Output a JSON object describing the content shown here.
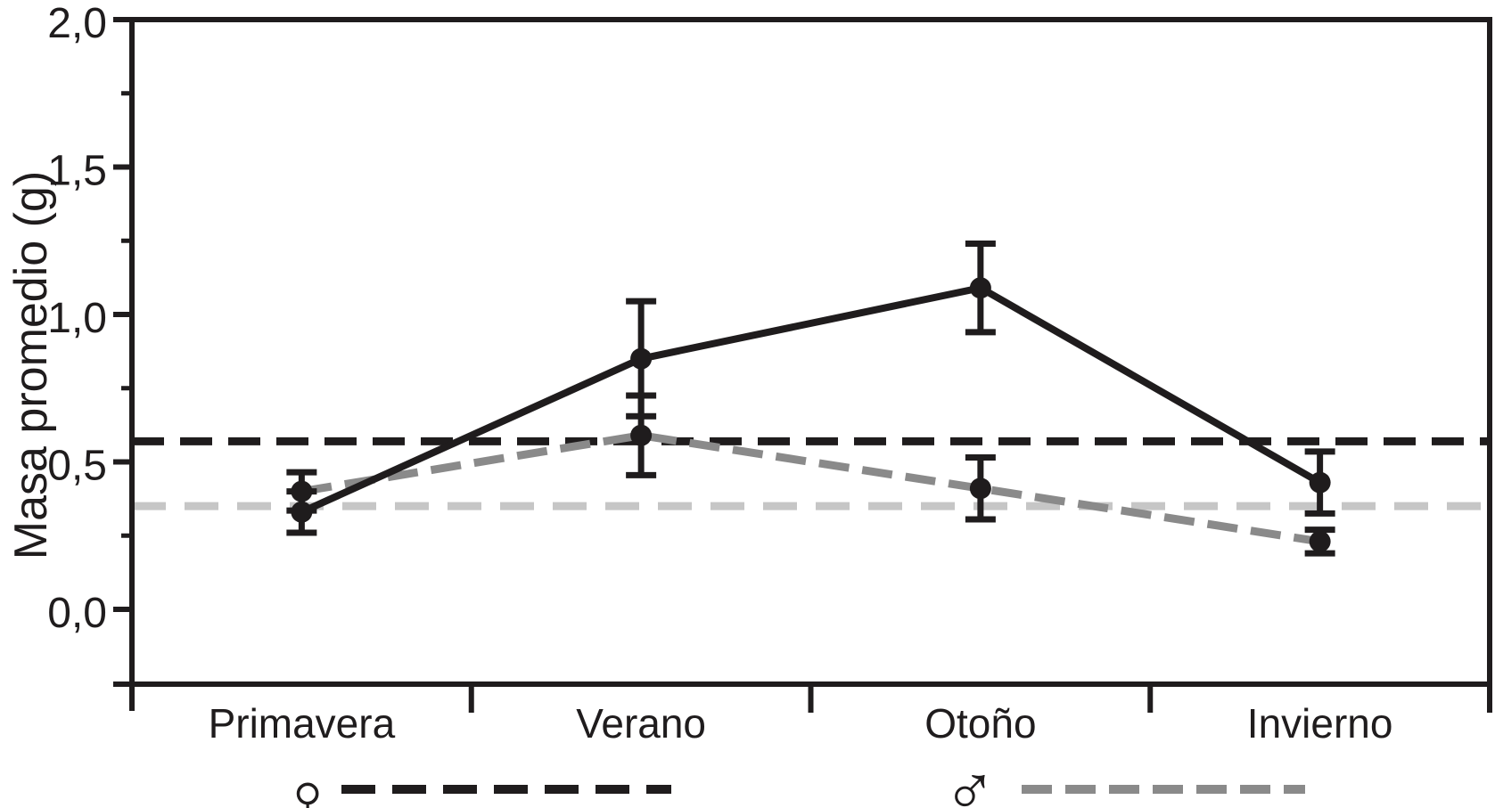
{
  "figure_title": "",
  "chart_data": {
    "type": "line",
    "title": "",
    "xlabel": "",
    "ylabel": "Masa promedio (g)",
    "categories": [
      "Primavera",
      "Verano",
      "Otoño",
      "Invierno"
    ],
    "ylim": [
      -0.26,
      2.0
    ],
    "yticks": [
      {
        "value": 0.0,
        "label": "0,0"
      },
      {
        "value": 0.5,
        "label": "0,5"
      },
      {
        "value": 1.0,
        "label": "1,0"
      },
      {
        "value": 1.5,
        "label": "1,5"
      },
      {
        "value": 2.0,
        "label": "2,0"
      }
    ],
    "minor_yticks": [
      0.25,
      0.75,
      1.25,
      1.75
    ],
    "grid": false,
    "legend_position": "bottom",
    "series": [
      {
        "name": "males-seasonal",
        "line_style": "dashed",
        "color": "#8a8a8a",
        "marker": "filled-circle",
        "marker_color": "#1f1c1d",
        "values": [
          0.4,
          0.59,
          0.41,
          0.23
        ],
        "errors": [
          0.065,
          0.135,
          0.105,
          0.04
        ]
      },
      {
        "name": "females-seasonal",
        "line_style": "solid",
        "color": "#1f1c1d",
        "marker": "filled-circle",
        "marker_color": "#1f1c1d",
        "values": [
          0.33,
          0.85,
          1.09,
          0.43
        ],
        "errors": [
          0.07,
          0.195,
          0.15,
          0.105
        ]
      }
    ],
    "reference_lines": [
      {
        "name": "male-mean",
        "value": 0.35,
        "line_style": "dashed",
        "color": "#c6c6c6"
      },
      {
        "name": "female-mean",
        "value": 0.57,
        "line_style": "dashed",
        "color": "#1f1c1d"
      }
    ],
    "legend": [
      {
        "symbol": "♀",
        "meaning": "female",
        "line_style": "dashed",
        "line_color": "#1f1c1d"
      },
      {
        "symbol": "♂",
        "meaning": "male",
        "line_style": "dashed",
        "line_color": "#8a8a8a"
      }
    ],
    "colors": {
      "axis": "#1f1c1d",
      "series_black": "#1f1c1d",
      "series_gray": "#8a8a8a",
      "reference_light_gray": "#c6c6c6",
      "background": "#ffffff"
    }
  }
}
